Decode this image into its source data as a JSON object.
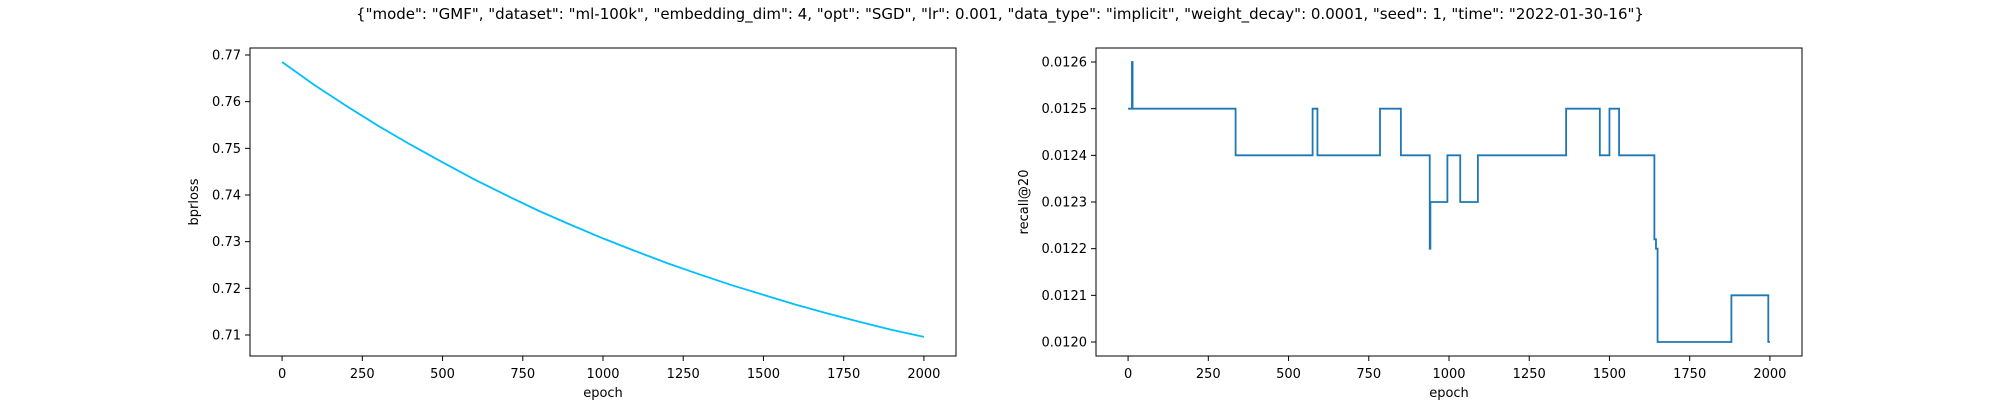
{
  "figure": {
    "title": "{\"mode\": \"GMF\", \"dataset\": \"ml-100k\", \"embedding_dim\": 4, \"opt\": \"SGD\", \"lr\": 0.001, \"data_type\": \"implicit\", \"weight_decay\": 0.0001, \"seed\": 1, \"time\": \"2022-01-30-16\"}"
  },
  "chart_data": [
    {
      "type": "line",
      "xlabel": "epoch",
      "ylabel": "bprloss",
      "xlim": [
        -100,
        2100
      ],
      "ylim": [
        0.7055,
        0.7715
      ],
      "xticks": [
        0,
        250,
        500,
        750,
        1000,
        1250,
        1500,
        1750,
        2000
      ],
      "xtick_labels": [
        "0",
        "250",
        "500",
        "750",
        "1000",
        "1250",
        "1500",
        "1750",
        "2000"
      ],
      "yticks": [
        0.71,
        0.72,
        0.73,
        0.74,
        0.75,
        0.76,
        0.77
      ],
      "ytick_labels": [
        "0.71",
        "0.72",
        "0.73",
        "0.74",
        "0.75",
        "0.76",
        "0.77"
      ],
      "grid": false,
      "series": [
        {
          "color": "#00bfff",
          "x": [
            0,
            100,
            200,
            300,
            400,
            500,
            600,
            700,
            800,
            900,
            1000,
            1100,
            1200,
            1300,
            1400,
            1500,
            1600,
            1700,
            1800,
            1900,
            2000
          ],
          "y": [
            0.7685,
            0.7636,
            0.7591,
            0.7548,
            0.7508,
            0.747,
            0.7433,
            0.7399,
            0.7366,
            0.7336,
            0.7307,
            0.728,
            0.7254,
            0.723,
            0.7207,
            0.7186,
            0.7165,
            0.7146,
            0.7128,
            0.7111,
            0.7096
          ]
        }
      ]
    },
    {
      "type": "line",
      "xlabel": "epoch",
      "ylabel": "recall@20",
      "xlim": [
        -100,
        2100
      ],
      "ylim": [
        0.01197,
        0.01263
      ],
      "xticks": [
        0,
        250,
        500,
        750,
        1000,
        1250,
        1500,
        1750,
        2000
      ],
      "xtick_labels": [
        "0",
        "250",
        "500",
        "750",
        "1000",
        "1250",
        "1500",
        "1750",
        "2000"
      ],
      "yticks": [
        0.012,
        0.0121,
        0.0122,
        0.0123,
        0.0124,
        0.0125,
        0.0126
      ],
      "ytick_labels": [
        "0.0120",
        "0.0121",
        "0.0122",
        "0.0123",
        "0.0124",
        "0.0125",
        "0.0126"
      ],
      "grid": false,
      "series": [
        {
          "color": "#1f77b4",
          "step": "post",
          "x": [
            0,
            12,
            14,
            16,
            335,
            575,
            580,
            590,
            785,
            850,
            940,
            942,
            945,
            995,
            1005,
            1035,
            1090,
            1365,
            1470,
            1500,
            1530,
            1640,
            1645,
            1650,
            1880,
            1995,
            2000
          ],
          "y": [
            0.0125,
            0.0126,
            0.0125,
            0.0125,
            0.0124,
            0.0125,
            0.0125,
            0.0124,
            0.0125,
            0.0124,
            0.0122,
            0.0123,
            0.0123,
            0.0124,
            0.0124,
            0.0123,
            0.0124,
            0.0125,
            0.0124,
            0.0125,
            0.0124,
            0.01222,
            0.0122,
            0.012,
            0.0121,
            0.012,
            0.012
          ]
        }
      ]
    }
  ]
}
